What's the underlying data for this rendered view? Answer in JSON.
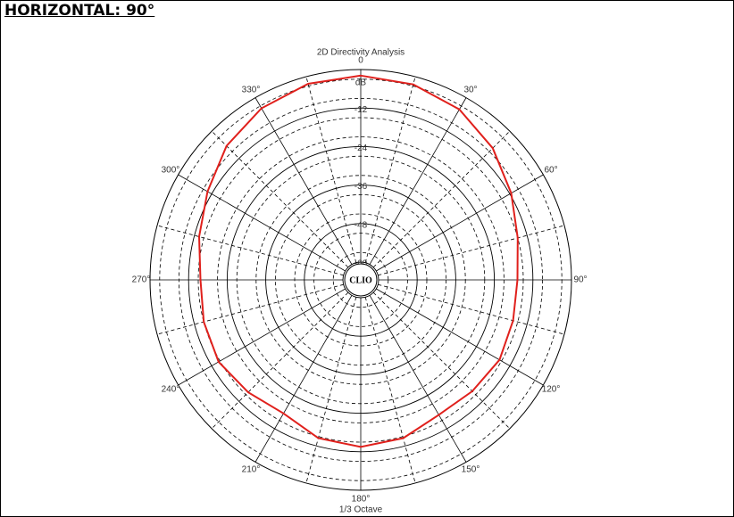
{
  "heading": "HORIZONTAL: 90°",
  "chart_data": {
    "type": "polar",
    "title": "2D Directivity Analysis",
    "subtitle": "1/3 Octave",
    "logo": "CLIO",
    "r_unit": "dB",
    "direction": "clockwise",
    "zero": "top",
    "rlim": [
      -60,
      0
    ],
    "rticks": [
      -12,
      -24,
      -36,
      -48,
      -60
    ],
    "thetaticks": [
      0,
      {
        "value": 30,
        "label": "30°"
      },
      {
        "value": 60,
        "label": "60°"
      },
      {
        "value": 90,
        "label": "90°"
      },
      {
        "value": 120,
        "label": "120°"
      },
      {
        "value": 150,
        "label": "150°"
      },
      {
        "value": 180,
        "label": "180°"
      },
      {
        "value": 210,
        "label": "210°"
      },
      {
        "value": 240,
        "label": "240°"
      },
      {
        "value": 270,
        "label": "270°"
      },
      {
        "value": 300,
        "label": "300°"
      },
      {
        "value": 330,
        "label": "330°"
      }
    ],
    "theta": [
      0,
      15,
      30,
      45,
      60,
      75,
      90,
      105,
      120,
      135,
      150,
      165,
      180,
      195,
      210,
      225,
      240,
      255,
      270,
      285,
      300,
      315,
      330,
      345
    ],
    "series": [
      {
        "color": "#e0201c",
        "values": [
          -1.9,
          -2.5,
          -4.2,
          -7.5,
          -11.5,
          -15,
          -16.8,
          -16.5,
          -15.7,
          -16.5,
          -17,
          -14.5,
          -13.5,
          -14.5,
          -17.5,
          -16,
          -14.5,
          -15,
          -15.7,
          -13.5,
          -10.5,
          -6.5,
          -3.8,
          -2.3
        ]
      }
    ]
  }
}
